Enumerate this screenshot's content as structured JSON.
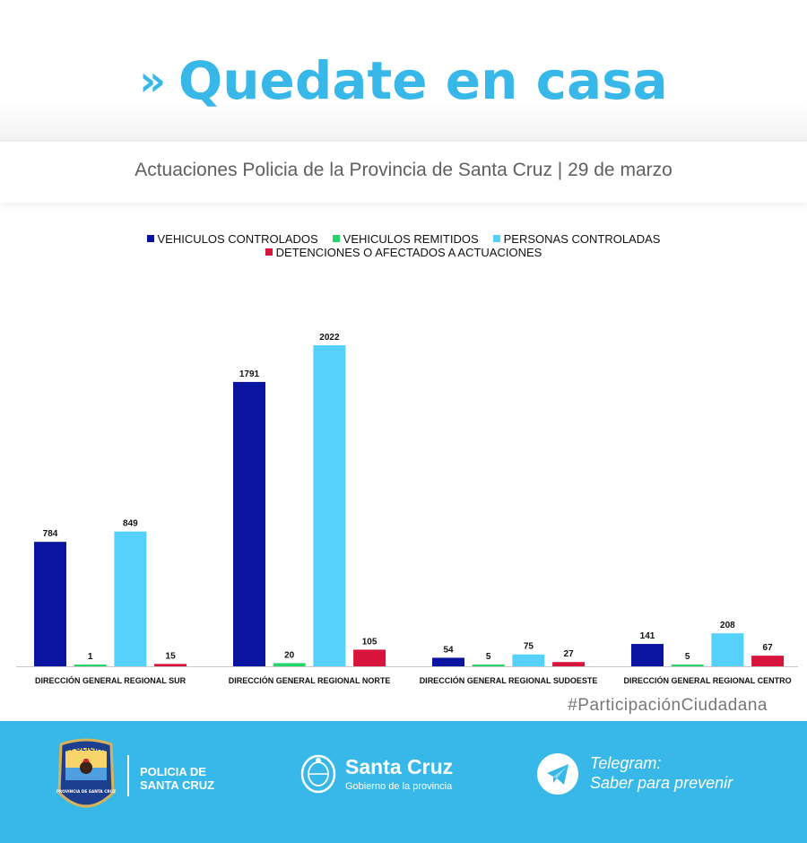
{
  "header": {
    "chevrons": "»",
    "title": "Quedate en casa",
    "subtitle": "Actuaciones Policia de la Provincia de Santa Cruz | 29 de marzo"
  },
  "colors": {
    "accent": "#38b8e8",
    "vehiculos_controlados": "#0a14a0",
    "vehiculos_remitidos": "#22d66a",
    "personas_controladas": "#55d1fb",
    "detenciones": "#d8143c"
  },
  "chart_data": {
    "type": "bar",
    "categories": [
      "DIRECCIÓN GENERAL REGIONAL SUR",
      "DIRECCIÓN GENERAL REGIONAL NORTE",
      "DIRECCIÓN GENERAL REGIONAL SUDOESTE",
      "DIRECCIÓN GENERAL REGIONAL CENTRO"
    ],
    "series": [
      {
        "name": "VEHICULOS CONTROLADOS",
        "color": "#0a14a0",
        "values": [
          784,
          1791,
          54,
          141
        ]
      },
      {
        "name": "VEHICULOS REMITIDOS",
        "color": "#22d66a",
        "values": [
          1,
          20,
          5,
          5
        ]
      },
      {
        "name": "PERSONAS CONTROLADAS",
        "color": "#55d1fb",
        "values": [
          849,
          2022,
          75,
          208
        ]
      },
      {
        "name": "DETENCIONES O AFECTADOS A ACTUACIONES",
        "color": "#d8143c",
        "values": [
          15,
          105,
          27,
          67
        ]
      }
    ],
    "legend_position": "top",
    "grid": false,
    "data_labels": true,
    "ylim": [
      0,
      2022
    ]
  },
  "footer": {
    "hashtag": "#ParticipaciónCiudadana",
    "badge_top_text": "POLICIA",
    "badge_bottom_text": "PROVINCIA DE SANTA CRUZ",
    "police_line1": "POLICIA DE",
    "police_line2": "SANTA CRUZ",
    "province_name": "Santa Cruz",
    "province_sub": "Gobierno de la provincia",
    "telegram_title": "Telegram:",
    "telegram_sub": "Saber para prevenir",
    "icons": [
      "police-badge-icon",
      "province-seal-icon",
      "telegram-icon"
    ]
  }
}
